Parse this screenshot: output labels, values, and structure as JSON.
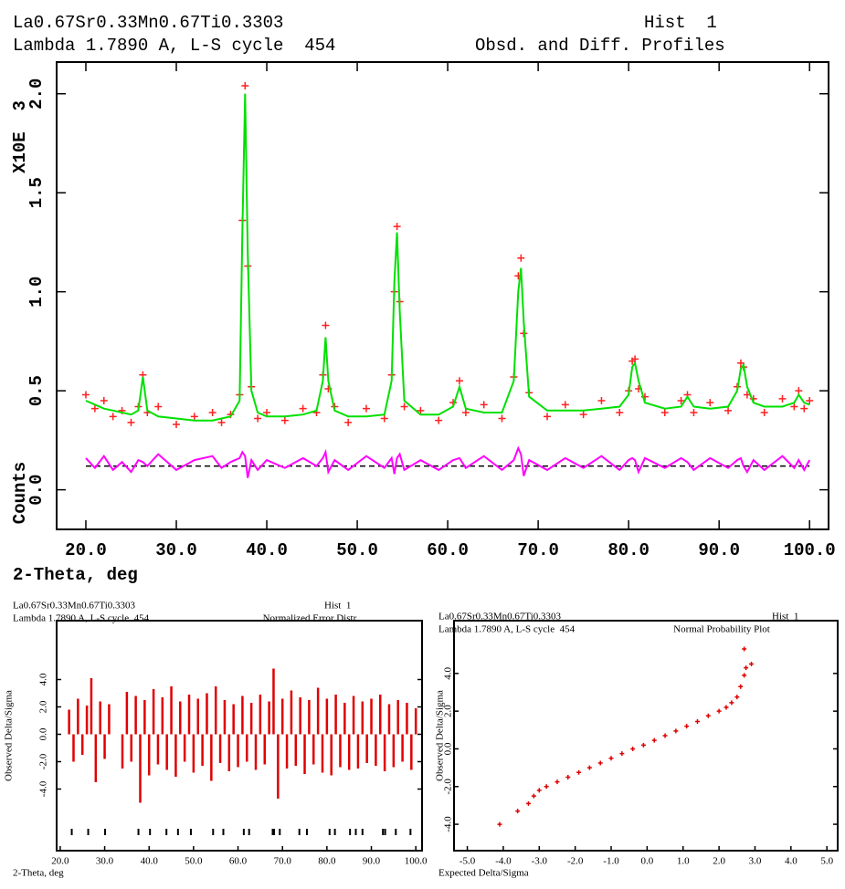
{
  "chart_data": [
    {
      "type": "line",
      "title": "La0.67Sr0.33Mn0.67Ti0.3303",
      "histogram": "Hist  1",
      "subtitle": "Lambda 1.7890 A, L-S cycle  454",
      "plot_name": "Obsd. and Diff. Profiles",
      "xlabel": "2-Theta, deg",
      "ylabel": "Counts",
      "yscale_label": "X10E  3",
      "xlim": [
        16.77,
        102.1
      ],
      "ylim": [
        -0.2,
        2.16
      ],
      "xticks": [
        {
          "value": 20,
          "label": "20.0"
        },
        {
          "value": 30,
          "label": "30.0"
        },
        {
          "value": 40,
          "label": "40.0"
        },
        {
          "value": 50,
          "label": "50.0"
        },
        {
          "value": 60,
          "label": "60.0"
        },
        {
          "value": 70,
          "label": "70.0"
        },
        {
          "value": 80,
          "label": "80.0"
        },
        {
          "value": 90,
          "label": "90.0"
        },
        {
          "value": 100,
          "label": "100.0"
        }
      ],
      "yticks": [
        {
          "value": 0,
          "label": "0.0"
        },
        {
          "value": 0.5,
          "label": "0.5"
        },
        {
          "value": 1,
          "label": "1.0"
        },
        {
          "value": 1.5,
          "label": "1.5"
        },
        {
          "value": 2,
          "label": "2.0"
        }
      ],
      "x": [
        20,
        21,
        22,
        23,
        24,
        25,
        25.8,
        26.3,
        26.8,
        28,
        30,
        32,
        34,
        35,
        36,
        37,
        37.3,
        37.6,
        37.9,
        38.3,
        39,
        40,
        42,
        44,
        45.5,
        46.2,
        46.5,
        46.8,
        47.5,
        49,
        51,
        53,
        53.8,
        54.1,
        54.4,
        54.7,
        55.2,
        57,
        59,
        60.6,
        61.3,
        62,
        64,
        66,
        67.3,
        67.8,
        68.1,
        68.4,
        69,
        71,
        73,
        75,
        77,
        79,
        80,
        80.4,
        80.7,
        81.1,
        81.8,
        84,
        85.8,
        86.5,
        87.2,
        89,
        91,
        92,
        92.4,
        92.7,
        93.1,
        93.8,
        95,
        97,
        98.3,
        98.8,
        99.4,
        100
      ],
      "series": [
        {
          "style": "markers",
          "color": "#ff2020",
          "values": [
            0.48,
            0.41,
            0.45,
            0.37,
            0.4,
            0.34,
            0.42,
            0.58,
            0.39,
            0.42,
            0.33,
            0.37,
            0.39,
            0.34,
            0.38,
            0.48,
            1.36,
            2.04,
            1.13,
            0.52,
            0.36,
            0.39,
            0.35,
            0.41,
            0.39,
            0.58,
            0.83,
            0.51,
            0.42,
            0.34,
            0.41,
            0.36,
            0.58,
            1.0,
            1.33,
            0.95,
            0.42,
            0.4,
            0.35,
            0.44,
            0.55,
            0.39,
            0.43,
            0.36,
            0.57,
            1.08,
            1.17,
            0.79,
            0.49,
            0.37,
            0.43,
            0.38,
            0.45,
            0.39,
            0.5,
            0.65,
            0.66,
            0.51,
            0.47,
            0.39,
            0.45,
            0.48,
            0.39,
            0.44,
            0.4,
            0.52,
            0.64,
            0.62,
            0.48,
            0.46,
            0.39,
            0.46,
            0.42,
            0.5,
            0.41,
            0.45
          ]
        },
        {
          "style": "line",
          "color": "#00e000",
          "values": [
            0.45,
            0.43,
            0.41,
            0.4,
            0.39,
            0.38,
            0.4,
            0.57,
            0.4,
            0.37,
            0.36,
            0.35,
            0.35,
            0.36,
            0.37,
            0.45,
            1.3,
            2.0,
            1.2,
            0.5,
            0.39,
            0.37,
            0.37,
            0.38,
            0.4,
            0.55,
            0.77,
            0.55,
            0.4,
            0.37,
            0.37,
            0.38,
            0.55,
            1.05,
            1.3,
            0.9,
            0.45,
            0.38,
            0.38,
            0.42,
            0.52,
            0.41,
            0.39,
            0.39,
            0.55,
            1.0,
            1.12,
            0.85,
            0.47,
            0.4,
            0.4,
            0.4,
            0.41,
            0.42,
            0.48,
            0.62,
            0.64,
            0.55,
            0.44,
            0.41,
            0.42,
            0.47,
            0.42,
            0.41,
            0.42,
            0.5,
            0.61,
            0.63,
            0.52,
            0.44,
            0.42,
            0.42,
            0.44,
            0.48,
            0.44,
            0.43
          ]
        },
        {
          "style": "line",
          "color": "#ff00ff",
          "values": [
            0.16,
            0.11,
            0.17,
            0.1,
            0.14,
            0.09,
            0.15,
            0.14,
            0.12,
            0.18,
            0.1,
            0.15,
            0.17,
            0.11,
            0.14,
            0.16,
            0.19,
            0.17,
            0.06,
            0.15,
            0.1,
            0.15,
            0.11,
            0.16,
            0.12,
            0.16,
            0.19,
            0.09,
            0.15,
            0.1,
            0.17,
            0.11,
            0.16,
            0.08,
            0.16,
            0.18,
            0.1,
            0.15,
            0.1,
            0.15,
            0.16,
            0.11,
            0.17,
            0.1,
            0.15,
            0.21,
            0.18,
            0.07,
            0.15,
            0.1,
            0.16,
            0.11,
            0.17,
            0.1,
            0.15,
            0.16,
            0.15,
            0.09,
            0.16,
            0.11,
            0.16,
            0.14,
            0.1,
            0.16,
            0.11,
            0.15,
            0.16,
            0.12,
            0.09,
            0.15,
            0.1,
            0.17,
            0.11,
            0.15,
            0.1,
            0.15
          ]
        }
      ],
      "diff_baseline": 0.12
    },
    {
      "type": "bar",
      "title": "La0.67Sr0.33Mn0.67Ti0.3303",
      "histogram": "Hist  1",
      "subtitle": "Lambda 1.7890 A, L-S cycle  454",
      "plot_name": "Normalized Error Distr.",
      "xlabel": "2-Theta, deg",
      "ylabel": "Observed Delta/Sigma",
      "xlim": [
        19.2,
        101.4
      ],
      "ylim": [
        -8.5,
        8.3
      ],
      "xticks": [
        {
          "value": 20,
          "label": "20.0"
        },
        {
          "value": 30,
          "label": "30.0"
        },
        {
          "value": 40,
          "label": "40.0"
        },
        {
          "value": 50,
          "label": "50.0"
        },
        {
          "value": 60,
          "label": "60.0"
        },
        {
          "value": 70,
          "label": "70.0"
        },
        {
          "value": 80,
          "label": "80.0"
        },
        {
          "value": 90,
          "label": "90.0"
        },
        {
          "value": 100,
          "label": "100.0"
        }
      ],
      "yticks": [
        {
          "value": -4,
          "label": "-4.0"
        },
        {
          "value": -2,
          "label": "-2.0"
        },
        {
          "value": 0,
          "label": "0.0"
        },
        {
          "value": 2,
          "label": "2.0"
        },
        {
          "value": 4,
          "label": "4.0"
        }
      ],
      "color": "#e00000",
      "x": [
        22,
        23,
        24,
        25,
        26,
        27,
        28,
        29,
        30,
        31,
        34,
        35,
        36,
        37,
        38,
        39,
        40,
        41,
        42,
        43,
        44,
        45,
        46,
        47,
        48,
        49,
        50,
        51,
        52,
        53,
        54,
        55,
        56,
        57,
        58,
        59,
        60,
        61,
        62,
        63,
        64,
        65,
        66,
        67,
        68,
        69,
        70,
        71,
        72,
        73,
        74,
        75,
        76,
        77,
        78,
        79,
        80,
        81,
        82,
        83,
        84,
        85,
        86,
        87,
        88,
        89,
        90,
        91,
        92,
        93,
        94,
        95,
        96,
        97,
        98,
        99,
        100
      ],
      "values": [
        1.8,
        -2.0,
        2.6,
        -1.5,
        2.1,
        4.1,
        -3.5,
        2.4,
        -1.8,
        2.2,
        -2.5,
        3.1,
        -2.0,
        2.8,
        -5.0,
        2.5,
        -3.0,
        3.3,
        -2.2,
        2.7,
        -2.6,
        3.5,
        -3.1,
        2.4,
        -2.0,
        2.9,
        -2.8,
        2.6,
        -2.3,
        3.0,
        -3.4,
        3.5,
        -2.1,
        2.5,
        -2.7,
        2.2,
        -2.4,
        2.8,
        -2.0,
        2.3,
        -2.6,
        2.9,
        -2.2,
        2.4,
        4.8,
        -4.7,
        2.6,
        -2.5,
        3.2,
        -2.3,
        2.7,
        -2.9,
        2.5,
        -2.2,
        3.4,
        -2.8,
        2.6,
        -3.0,
        2.9,
        -2.4,
        2.3,
        -2.6,
        2.8,
        -2.5,
        2.4,
        -2.1,
        2.6,
        -2.3,
        2.9,
        -2.7,
        2.2,
        -2.4,
        2.5,
        -2.0,
        2.3,
        -2.6,
        1.9
      ],
      "reflections": [
        22.6,
        26.3,
        30.1,
        37.6,
        40.2,
        43.9,
        46.5,
        49.4,
        54.4,
        56.7,
        61.3,
        62.5,
        67.8,
        68.1,
        69.4,
        73.8,
        75.5,
        80.6,
        81.8,
        85.2,
        86.5,
        88.0,
        92.6,
        93.1,
        95.5,
        98.8
      ]
    },
    {
      "type": "scatter",
      "title": "La0.67Sr0.33Mn0.67Ti0.3303",
      "histogram": "Hist  1",
      "subtitle": "Lambda 1.7890 A, L-S cycle  454",
      "plot_name": "Normal Probability Plot",
      "xlabel": "Expected Delta/Sigma",
      "ylabel": "Observed Delta/Sigma",
      "xlim": [
        -5.37,
        5.3
      ],
      "ylim": [
        -5.4,
        6.8
      ],
      "xticks": [
        {
          "value": -5,
          "label": "-5.0"
        },
        {
          "value": -4,
          "label": "-4.0"
        },
        {
          "value": -3,
          "label": "-3.0"
        },
        {
          "value": -2,
          "label": "-2.0"
        },
        {
          "value": -1,
          "label": "-1.0"
        },
        {
          "value": 0,
          "label": "0.0"
        },
        {
          "value": 1,
          "label": "1.0"
        },
        {
          "value": 2,
          "label": "2.0"
        },
        {
          "value": 3,
          "label": "3.0"
        },
        {
          "value": 4,
          "label": "4.0"
        },
        {
          "value": 5,
          "label": "5.0"
        }
      ],
      "yticks": [
        {
          "value": -4,
          "label": "-4.0"
        },
        {
          "value": -2,
          "label": "-2.0"
        },
        {
          "value": 0,
          "label": "0.0"
        },
        {
          "value": 2,
          "label": "2.0"
        },
        {
          "value": 4,
          "label": "4.0"
        }
      ],
      "color": "#e00000",
      "x": [
        -4.1,
        -3.6,
        -3.3,
        -3.15,
        -3.0,
        -2.8,
        -2.5,
        -2.2,
        -1.9,
        -1.6,
        -1.3,
        -1.0,
        -0.7,
        -0.4,
        -0.1,
        0.2,
        0.5,
        0.8,
        1.1,
        1.4,
        1.7,
        2.0,
        2.2,
        2.35,
        2.5,
        2.6,
        2.7,
        2.75,
        2.9,
        2.7
      ],
      "values": [
        -4.0,
        -3.3,
        -2.9,
        -2.5,
        -2.2,
        -2.0,
        -1.75,
        -1.5,
        -1.25,
        -1.0,
        -0.75,
        -0.5,
        -0.25,
        0.0,
        0.2,
        0.45,
        0.7,
        0.95,
        1.2,
        1.45,
        1.75,
        2.0,
        2.2,
        2.45,
        2.75,
        3.3,
        3.9,
        4.3,
        4.5,
        5.3
      ]
    }
  ]
}
